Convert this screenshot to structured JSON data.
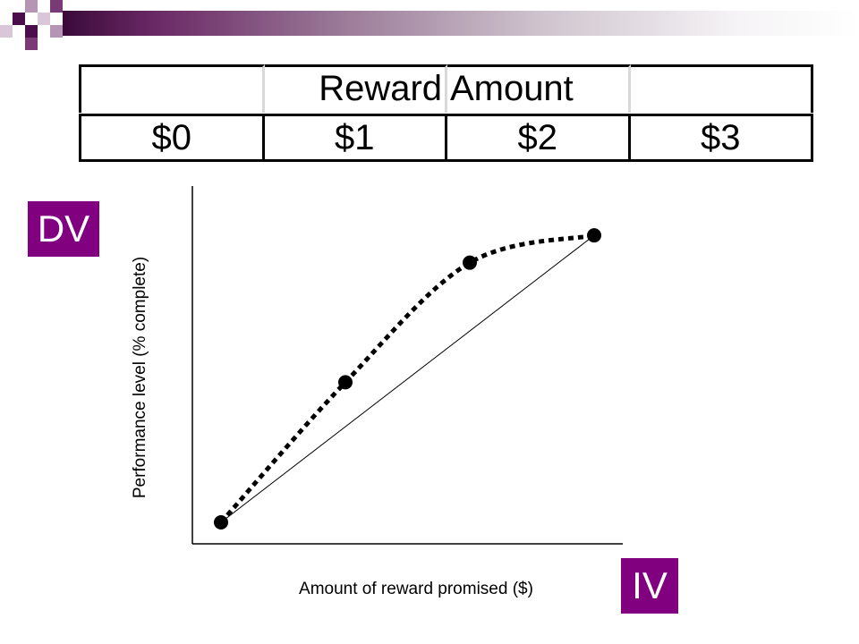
{
  "colors": {
    "accent": "#800080",
    "header_dark": "#3a0a3a",
    "header_light": "#ffffff"
  },
  "table": {
    "header": "Reward Amount",
    "columns": [
      "$0",
      "$1",
      "$2",
      "$3"
    ]
  },
  "badges": {
    "dv": "DV",
    "iv": "IV"
  },
  "chart_data": {
    "type": "line",
    "xlabel": "Amount of reward promised ($)",
    "ylabel": "Performance level (% complete)",
    "x": [
      0,
      1,
      2,
      3
    ],
    "series": [
      {
        "style": "dotted-curve-with-markers",
        "values": [
          0,
          0.41,
          0.76,
          0.84
        ]
      },
      {
        "style": "thin-straight-line",
        "values": [
          0,
          0.28,
          0.56,
          0.84
        ]
      }
    ],
    "xlim": [
      0,
      3
    ],
    "ylim": [
      0,
      1
    ],
    "grid": false,
    "ticks_shown": false
  }
}
